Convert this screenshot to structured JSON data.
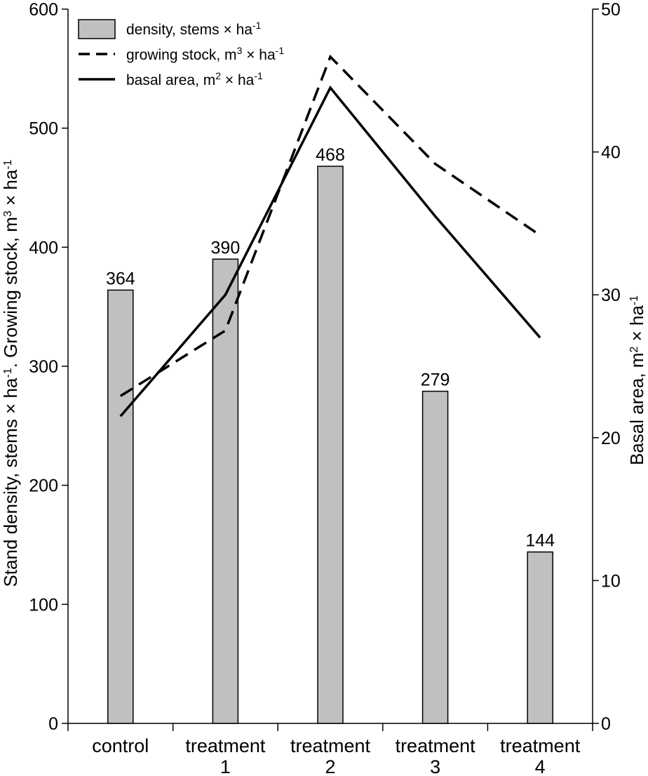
{
  "chart_data": {
    "type": "bar",
    "categories": [
      [
        "control"
      ],
      [
        "treatment",
        "1"
      ],
      [
        "treatment",
        "2"
      ],
      [
        "treatment",
        "3"
      ],
      [
        "treatment",
        "4"
      ]
    ],
    "series": [
      {
        "name": "density, stems × ha",
        "sup": "-1",
        "kind": "bar",
        "axis": "left",
        "values": [
          364,
          390,
          468,
          279,
          144
        ]
      },
      {
        "name": "growing stock, m",
        "sup": "3",
        "suffix": " × ha",
        "sup2": "-1",
        "kind": "line-dashed",
        "axis": "left",
        "values": [
          275,
          330,
          560,
          470,
          410
        ]
      },
      {
        "name": "basal area, m",
        "sup": "2",
        "suffix": " × ha",
        "sup2": "-1",
        "kind": "line-solid",
        "axis": "right",
        "values": [
          21.5,
          30.0,
          44.5,
          35.5,
          27.0
        ]
      }
    ],
    "data_labels": [
      "364",
      "390",
      "468",
      "279",
      "144"
    ],
    "left_axis": {
      "title_parts": [
        "Stand density, stems × ha",
        "-1",
        ". Growing stock, m",
        "3",
        " × ha",
        "-1"
      ],
      "ylim": [
        0,
        600
      ],
      "ticks": [
        0,
        100,
        200,
        300,
        400,
        500,
        600
      ]
    },
    "right_axis": {
      "title_parts": [
        "Basal area, m",
        "2",
        " × ha",
        "-1"
      ],
      "ylim": [
        0,
        50
      ],
      "ticks": [
        0,
        10,
        20,
        30,
        40,
        50
      ]
    },
    "legend_position": "top-left",
    "colors": {
      "bar_fill": "#c0c0c0",
      "stroke": "#000000"
    }
  }
}
